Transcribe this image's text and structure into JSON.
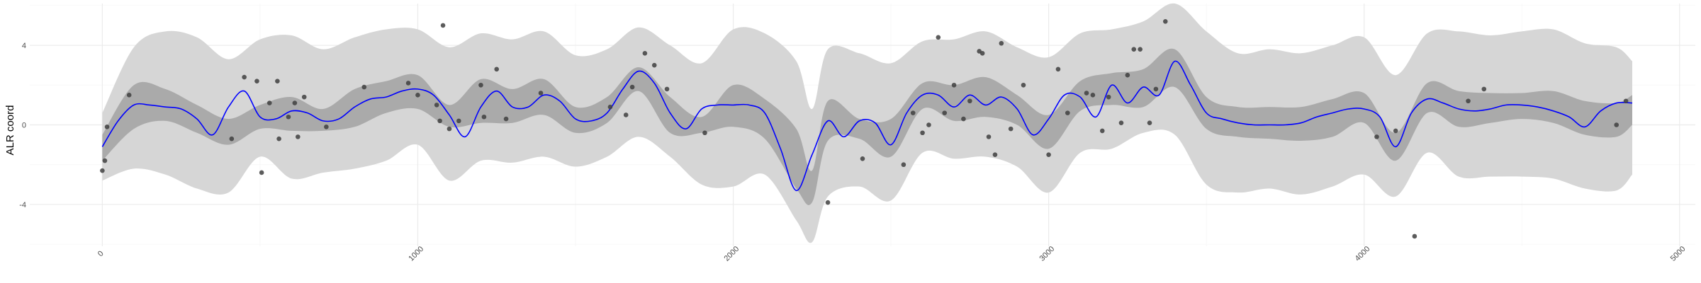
{
  "chart_data": {
    "type": "line",
    "ylabel": "ALR coord",
    "xlim": [
      -230,
      5050
    ],
    "ylim": [
      -6.1,
      6.1
    ],
    "x_ticks": [
      {
        "value": 0,
        "label": "0"
      },
      {
        "value": 1000,
        "label": "1000"
      },
      {
        "value": 2000,
        "label": "2000"
      },
      {
        "value": 3000,
        "label": "3000"
      },
      {
        "value": 4000,
        "label": "4000"
      },
      {
        "value": 5000,
        "label": "5000"
      }
    ],
    "y_ticks": [
      {
        "value": -4,
        "label": "-4"
      },
      {
        "value": 0,
        "label": "0"
      },
      {
        "value": 4,
        "label": "4"
      }
    ],
    "x_tick_label_rotation_deg": -45,
    "grid": true,
    "colors": {
      "mean_line": "#0000ff",
      "inner_band": "#aaaaaa",
      "outer_band": "#d6d6d6",
      "points": "#404040",
      "grid_major": "#ebebeb",
      "grid_minor": "#f5f5f5"
    },
    "mean_curve": {
      "x": [
        0,
        50,
        100,
        150,
        200,
        250,
        300,
        350,
        400,
        450,
        500,
        550,
        600,
        650,
        700,
        750,
        800,
        850,
        900,
        950,
        1000,
        1050,
        1100,
        1150,
        1200,
        1250,
        1300,
        1350,
        1400,
        1450,
        1500,
        1550,
        1600,
        1650,
        1700,
        1750,
        1800,
        1850,
        1900,
        1950,
        2000,
        2050,
        2100,
        2150,
        2200,
        2250,
        2300,
        2350,
        2400,
        2450,
        2500,
        2550,
        2600,
        2650,
        2700,
        2750,
        2800,
        2850,
        2900,
        2950,
        3000,
        3050,
        3100,
        3150,
        3200,
        3250,
        3300,
        3350,
        3400,
        3450,
        3500,
        3550,
        3600,
        3650,
        3700,
        3750,
        3800,
        3850,
        3900,
        3950,
        4000,
        4050,
        4100,
        4150,
        4200,
        4250,
        4300,
        4350,
        4400,
        4450,
        4500,
        4550,
        4600,
        4650,
        4700,
        4750,
        4800,
        4850
      ],
      "y": [
        -1.1,
        0.2,
        1.0,
        1.0,
        0.9,
        0.8,
        0.3,
        -0.5,
        0.9,
        1.7,
        0.4,
        0.3,
        0.7,
        0.6,
        0.2,
        0.3,
        0.9,
        1.3,
        1.4,
        1.7,
        1.8,
        1.5,
        0.5,
        -0.6,
        0.9,
        1.7,
        0.9,
        0.9,
        1.5,
        1.2,
        0.3,
        0.2,
        0.6,
        1.8,
        2.7,
        2.1,
        0.6,
        -0.2,
        0.8,
        1.0,
        1.0,
        1.0,
        0.6,
        -1.2,
        -3.3,
        -1.5,
        0.2,
        -0.6,
        0.2,
        0.1,
        -1.0,
        0.6,
        1.5,
        1.5,
        0.9,
        1.5,
        1.0,
        1.4,
        0.8,
        -0.5,
        0.3,
        1.5,
        1.4,
        0.4,
        2.0,
        1.1,
        1.9,
        1.5,
        3.2,
        2.0,
        0.6,
        0.3,
        0.1,
        0.0,
        0.0,
        0.0,
        0.1,
        0.4,
        0.6,
        0.8,
        0.8,
        0.4,
        -1.1,
        0.6,
        1.3,
        1.1,
        0.8,
        0.7,
        0.8,
        1.0,
        1.0,
        0.9,
        0.7,
        0.4,
        -0.1,
        0.7,
        1.1,
        1.1
      ]
    },
    "inner_band": {
      "x": [
        0,
        100,
        200,
        300,
        400,
        500,
        600,
        700,
        800,
        900,
        1000,
        1100,
        1200,
        1300,
        1400,
        1500,
        1600,
        1700,
        1800,
        1900,
        2000,
        2100,
        2200,
        2250,
        2300,
        2400,
        2500,
        2600,
        2700,
        2800,
        2900,
        3000,
        3100,
        3200,
        3300,
        3400,
        3500,
        3600,
        3700,
        3800,
        3900,
        4000,
        4100,
        4200,
        4300,
        4400,
        4500,
        4600,
        4700,
        4800,
        4850
      ],
      "lower": [
        -1.8,
        -0.2,
        0.2,
        -0.4,
        -1.0,
        -0.2,
        -0.3,
        -0.3,
        -0.1,
        0.6,
        0.8,
        -0.1,
        0.1,
        0.1,
        0.5,
        -0.4,
        0.1,
        1.7,
        -0.4,
        -0.4,
        -0.1,
        -0.7,
        -3.2,
        -3.9,
        -0.8,
        -0.7,
        -1.6,
        0.8,
        0.2,
        0.4,
        0.0,
        -1.2,
        0.7,
        1.0,
        0.9,
        1.9,
        -0.2,
        -0.6,
        -0.7,
        -0.8,
        -0.6,
        0.1,
        -1.8,
        0.6,
        -0.1,
        0.1,
        0.3,
        0.1,
        -0.5,
        -0.6,
        0.0
      ],
      "upper": [
        -0.5,
        2.0,
        1.8,
        1.0,
        0.3,
        1.0,
        1.4,
        0.8,
        1.8,
        2.2,
        2.5,
        1.0,
        2.3,
        1.8,
        2.3,
        0.9,
        1.4,
        2.9,
        1.4,
        0.4,
        2.0,
        1.3,
        -0.2,
        -2.3,
        1.2,
        0.3,
        0.3,
        2.1,
        2.0,
        2.4,
        1.5,
        0.5,
        2.2,
        2.6,
        2.8,
        3.8,
        1.4,
        0.9,
        0.9,
        0.9,
        1.3,
        1.6,
        -0.4,
        2.1,
        1.7,
        1.6,
        1.6,
        1.7,
        1.2,
        1.1,
        1.5
      ]
    },
    "outer_band": {
      "x": [
        0,
        100,
        200,
        300,
        400,
        500,
        600,
        700,
        800,
        900,
        1000,
        1100,
        1200,
        1300,
        1400,
        1500,
        1600,
        1700,
        1800,
        1900,
        2000,
        2100,
        2200,
        2250,
        2300,
        2400,
        2500,
        2600,
        2700,
        2800,
        2900,
        3000,
        3100,
        3200,
        3300,
        3400,
        3500,
        3600,
        3700,
        3800,
        3900,
        4000,
        4100,
        4200,
        4300,
        4400,
        4500,
        4600,
        4700,
        4800,
        4850
      ],
      "lower": [
        -2.8,
        -2.2,
        -2.5,
        -3.2,
        -3.4,
        -1.6,
        -2.7,
        -2.4,
        -2.2,
        -1.8,
        -1.0,
        -2.8,
        -1.8,
        -1.9,
        -1.6,
        -2.1,
        -1.6,
        -0.6,
        -1.6,
        -3.0,
        -3.1,
        -2.5,
        -4.8,
        -5.9,
        -3.6,
        -3.1,
        -3.8,
        -1.4,
        -1.7,
        -1.6,
        -2.1,
        -3.4,
        -1.4,
        -1.2,
        -0.4,
        -0.5,
        -3.0,
        -3.4,
        -3.2,
        -3.5,
        -3.1,
        -2.5,
        -3.6,
        -1.4,
        -2.6,
        -2.6,
        -2.6,
        -2.7,
        -3.2,
        -3.3,
        -2.5
      ],
      "upper": [
        0.6,
        3.9,
        4.7,
        4.4,
        3.3,
        4.3,
        4.5,
        3.8,
        4.4,
        4.8,
        4.8,
        3.9,
        4.6,
        4.3,
        4.7,
        3.5,
        3.8,
        4.9,
        4.0,
        3.1,
        4.8,
        4.6,
        3.2,
        0.8,
        3.8,
        3.6,
        3.1,
        4.2,
        4.3,
        4.7,
        3.9,
        3.4,
        4.6,
        4.8,
        5.2,
        6.1,
        4.7,
        3.6,
        3.8,
        3.6,
        4.0,
        4.4,
        2.5,
        4.6,
        4.7,
        4.5,
        4.7,
        4.8,
        4.1,
        3.9,
        3.2
      ]
    },
    "points": {
      "x": [
        0,
        8,
        15,
        85,
        410,
        450,
        490,
        505,
        530,
        555,
        560,
        590,
        610,
        620,
        640,
        710,
        830,
        970,
        1000,
        1060,
        1070,
        1080,
        1100,
        1130,
        1200,
        1210,
        1250,
        1280,
        1390,
        1610,
        1660,
        1680,
        1720,
        1750,
        1790,
        1910,
        2300,
        2410,
        2540,
        2570,
        2600,
        2620,
        2650,
        2670,
        2700,
        2730,
        2750,
        2780,
        2790,
        2810,
        2830,
        2850,
        2880,
        2920,
        3000,
        3030,
        3060,
        3120,
        3140,
        3170,
        3190,
        3230,
        3250,
        3270,
        3290,
        3320,
        3340,
        3370,
        4040,
        4100,
        4160,
        4330,
        4380,
        4800,
        4830
      ],
      "y": [
        -2.3,
        -1.8,
        -0.1,
        1.5,
        -0.7,
        2.4,
        2.2,
        -2.4,
        1.1,
        2.2,
        -0.7,
        0.4,
        1.1,
        -0.6,
        1.4,
        -0.1,
        1.9,
        2.1,
        1.5,
        1.0,
        0.2,
        5.0,
        -0.2,
        0.2,
        2.0,
        0.4,
        2.8,
        0.3,
        1.6,
        0.9,
        0.5,
        1.9,
        3.6,
        3.0,
        1.8,
        -0.4,
        -3.9,
        -1.7,
        -2.0,
        0.6,
        -0.4,
        0.0,
        4.4,
        0.6,
        2.0,
        0.3,
        1.2,
        3.7,
        3.6,
        -0.6,
        -1.5,
        4.1,
        -0.2,
        2.0,
        -1.5,
        2.8,
        0.6,
        1.6,
        1.5,
        -0.3,
        1.4,
        0.1,
        2.5,
        3.8,
        3.8,
        0.1,
        1.8,
        5.2,
        -0.6,
        -0.3,
        -5.6,
        1.2,
        1.8,
        0.0,
        1.2
      ]
    }
  }
}
